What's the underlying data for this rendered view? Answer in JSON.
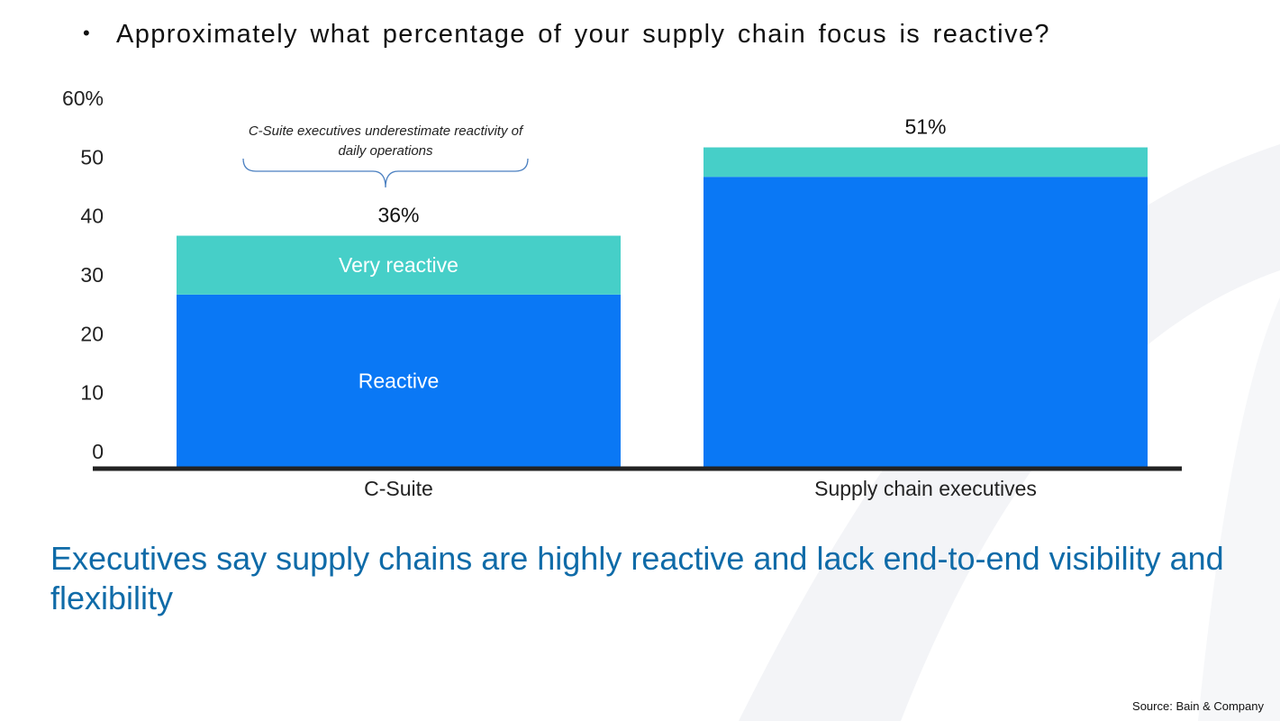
{
  "question": {
    "bullet": "•",
    "text": "Approximately what percentage of your supply chain focus is reactive?"
  },
  "annotation": {
    "line1": "C-Suite executives underestimate reactivity of",
    "line2": "daily operations"
  },
  "conclusion": "Executives say supply chains are highly reactive and lack end-to-end visibility and flexibility",
  "source": "Source: Bain & Company",
  "colors": {
    "reactive": "#0a78f5",
    "very_reactive": "#46cfc8",
    "axis": "#222222",
    "conclusion": "#0f6ba8",
    "background_arc": "#f3f4f7"
  },
  "chart_data": {
    "type": "bar",
    "stacked": true,
    "categories": [
      "C-Suite",
      "Supply chain executives"
    ],
    "series": [
      {
        "name": "Reactive",
        "color": "#0a78f5",
        "values": [
          26.5,
          46.5
        ]
      },
      {
        "name": "Very reactive",
        "color": "#46cfc8",
        "values": [
          10,
          5
        ]
      }
    ],
    "totals": [
      36,
      51
    ],
    "total_labels": [
      "36%",
      "51%"
    ],
    "segment_labels": [
      [
        "Reactive",
        "Very reactive"
      ],
      [
        "",
        ""
      ]
    ],
    "ylim": [
      0,
      60
    ],
    "yticks": [
      0,
      10,
      20,
      30,
      40,
      50,
      60
    ],
    "ytick_labels": [
      "0",
      "10",
      "20",
      "30",
      "40",
      "50",
      "60%"
    ],
    "xlabel": "",
    "ylabel": "",
    "grid": false,
    "legend": "none"
  }
}
